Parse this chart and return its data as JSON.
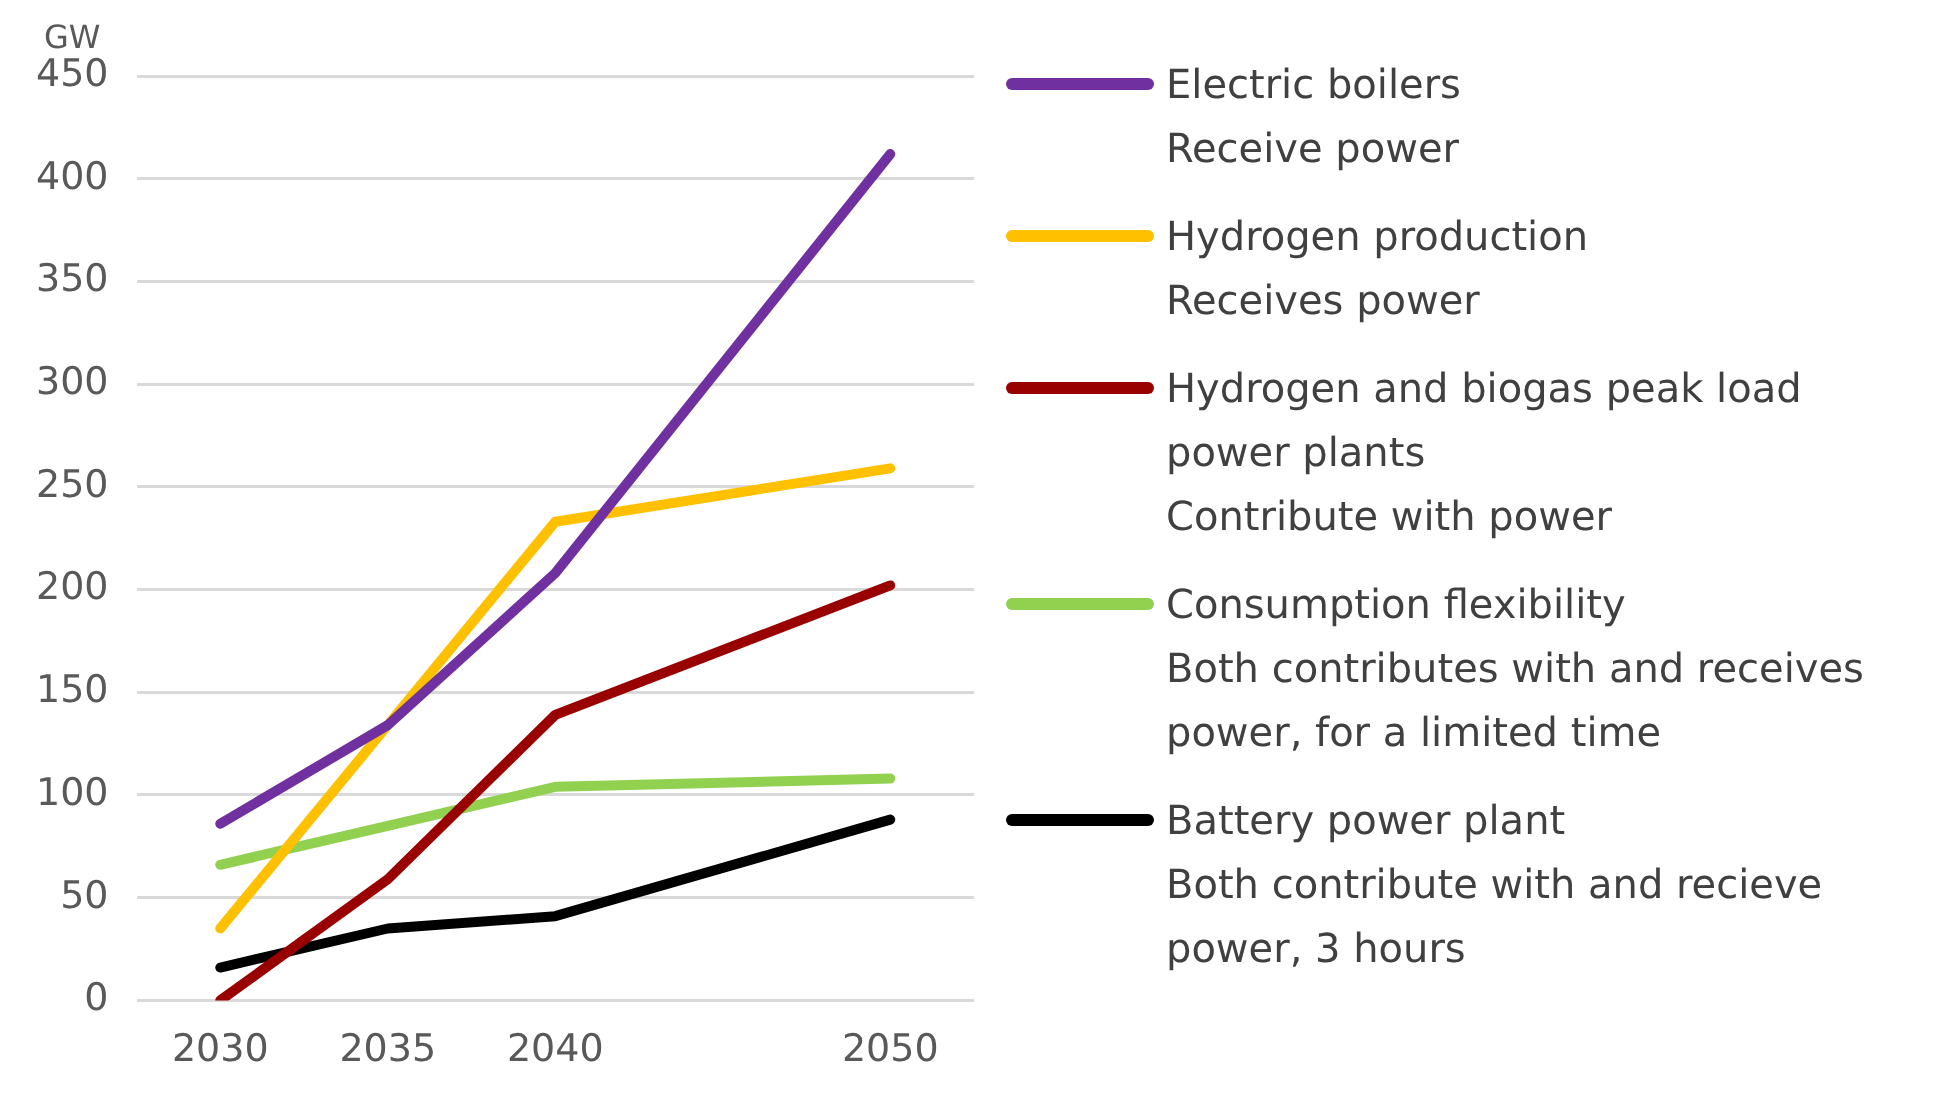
{
  "chart_data": {
    "type": "line",
    "ylabel": "GW",
    "x": [
      2030,
      2035,
      2040,
      2050
    ],
    "xlim": [
      2027.5,
      2052.5
    ],
    "xticks": [
      2030,
      2035,
      2040,
      2050
    ],
    "ylim": [
      0,
      450
    ],
    "yticks": [
      0,
      50,
      100,
      150,
      200,
      250,
      300,
      350,
      400,
      450
    ],
    "grid": "y",
    "legend": "right",
    "marker": "none",
    "line_style": "solid",
    "series": [
      {
        "name": "Electric boilers\nReceive power",
        "color": "#7030a0",
        "values": [
          86,
          134,
          208,
          412
        ]
      },
      {
        "name": "Hydrogen production\nReceives power",
        "color": "#ffc000",
        "values": [
          35,
          134,
          233,
          259
        ]
      },
      {
        "name": "Hydrogen and biogas peak load power plants\nContribute with power",
        "color": "#990000",
        "values": [
          0,
          59,
          139,
          202
        ]
      },
      {
        "name": "Consumption flexibility\nBoth contributes with and receives power, for a limited time",
        "color": "#92d050",
        "values": [
          66,
          85,
          104,
          108
        ]
      },
      {
        "name": "Battery power plant\nBoth contribute with and recieve power, 3 hours",
        "color": "#000000",
        "values": [
          16,
          35,
          41,
          88
        ]
      }
    ]
  }
}
